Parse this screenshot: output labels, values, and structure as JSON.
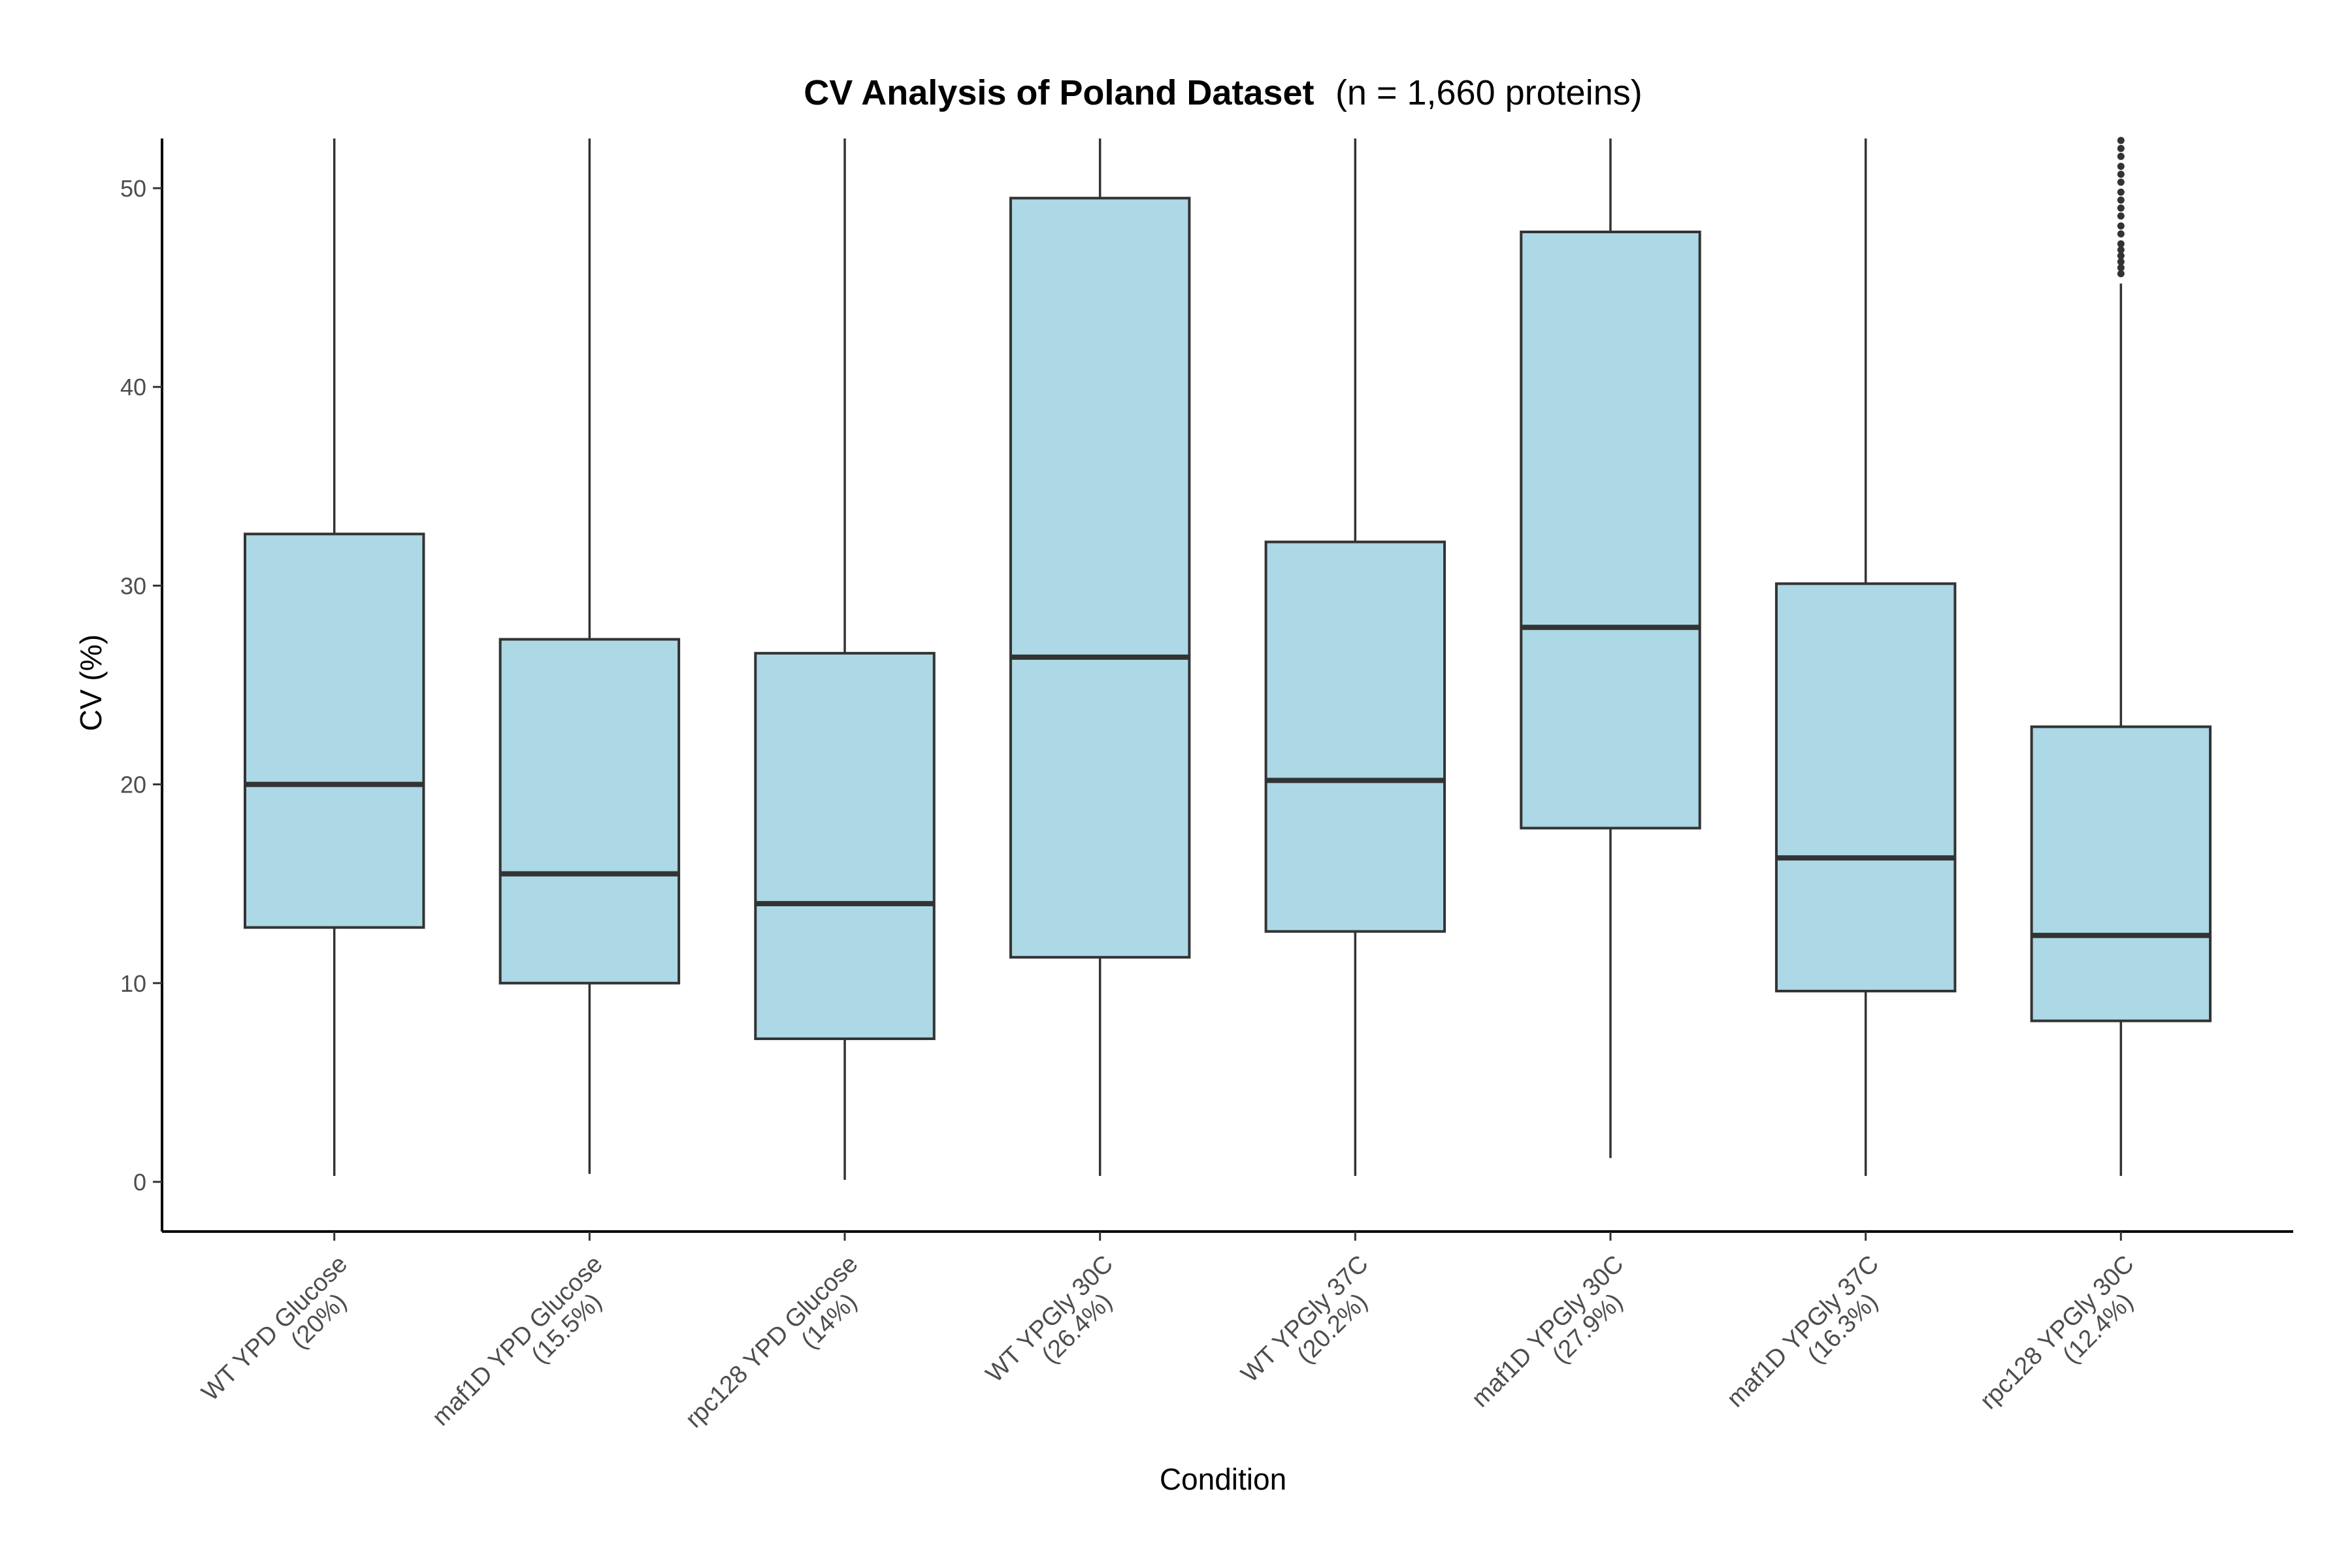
{
  "chart_data": {
    "type": "box",
    "title": "CV Analysis of Poland Dataset",
    "subtitle": "(n =  1,660  proteins)",
    "xlabel": "Condition",
    "ylabel": "CV (%)",
    "ylim": [
      -2.5,
      52.5
    ],
    "yticks": [
      0,
      10,
      20,
      30,
      40,
      50
    ],
    "grid": false,
    "colors": {
      "box_fill": "#ADD8E6",
      "line": "#333333",
      "axis": "#000000"
    },
    "categories": [
      {
        "line1": "WT YPD Glucose",
        "line2": "(20%)",
        "lower": 0.3,
        "q1": 12.8,
        "median": 20.0,
        "q3": 32.6,
        "upper": 52.5,
        "outliers": []
      },
      {
        "line1": "maf1D YPD Glucose",
        "line2": "(15.5%)",
        "lower": 0.4,
        "q1": 10.0,
        "median": 15.5,
        "q3": 27.3,
        "upper": 52.5,
        "outliers": []
      },
      {
        "line1": "rpc128 YPD Glucose",
        "line2": "(14%)",
        "lower": 0.1,
        "q1": 7.2,
        "median": 14.0,
        "q3": 26.6,
        "upper": 52.5,
        "outliers": []
      },
      {
        "line1": "WT YPGly 30C",
        "line2": "(26.4%)",
        "lower": 0.3,
        "q1": 11.3,
        "median": 26.4,
        "q3": 49.5,
        "upper": 52.5,
        "outliers": []
      },
      {
        "line1": "WT YPGly 37C",
        "line2": "(20.2%)",
        "lower": 0.3,
        "q1": 12.6,
        "median": 20.2,
        "q3": 32.2,
        "upper": 52.5,
        "outliers": []
      },
      {
        "line1": "maf1D YPGly 30C",
        "line2": "(27.9%)",
        "lower": 1.2,
        "q1": 17.8,
        "median": 27.9,
        "q3": 47.8,
        "upper": 52.5,
        "outliers": []
      },
      {
        "line1": "maf1D YPGly 37C",
        "line2": "(16.3%)",
        "lower": 0.3,
        "q1": 9.6,
        "median": 16.3,
        "q3": 30.1,
        "upper": 52.5,
        "outliers": []
      },
      {
        "line1": "rpc128 YPGly 30C",
        "line2": "(12.4%)",
        "lower": 0.3,
        "q1": 8.1,
        "median": 12.4,
        "q3": 22.9,
        "upper": 45.2,
        "outliers": [
          45.7,
          46.0,
          46.3,
          46.6,
          46.9,
          47.2,
          47.7,
          48.1,
          48.6,
          49.0,
          49.4,
          49.8,
          50.3,
          50.7,
          51.1,
          51.6,
          52.0,
          52.4
        ]
      }
    ]
  }
}
